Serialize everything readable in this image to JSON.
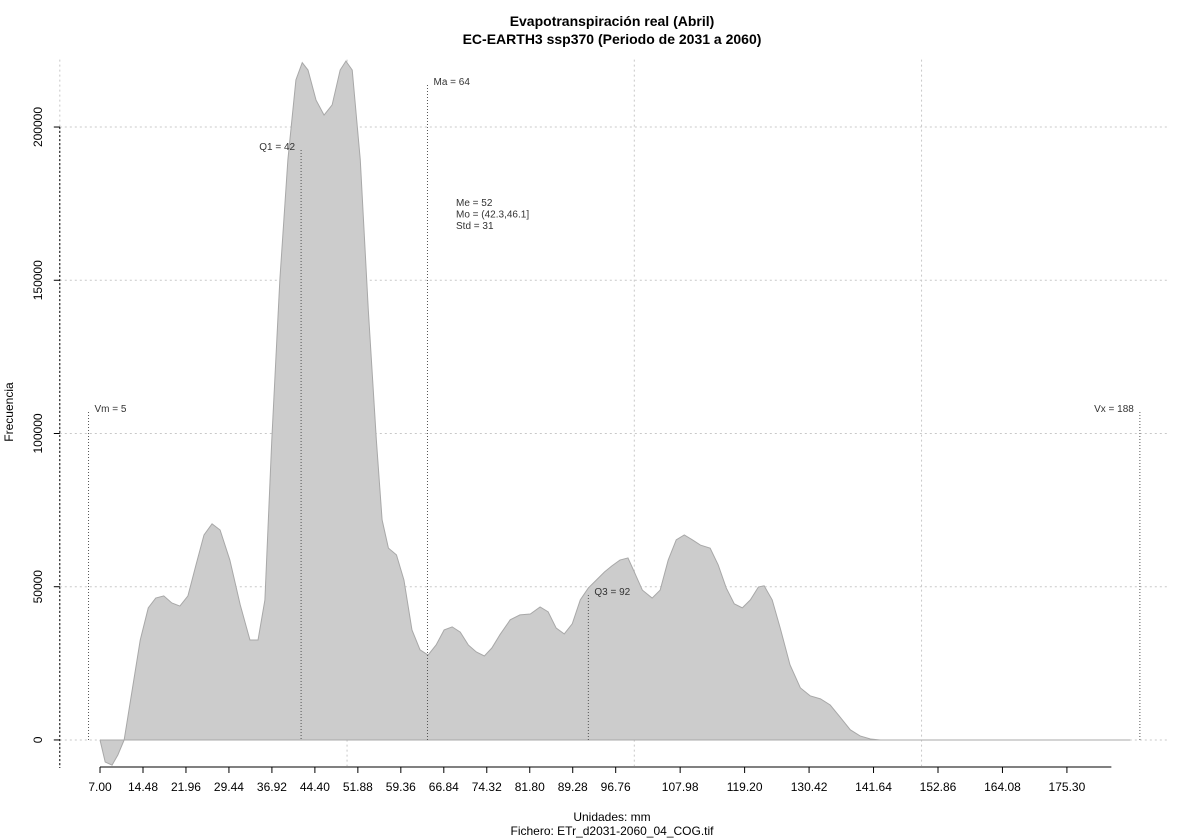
{
  "chart_data": {
    "type": "area",
    "title": "Evapotranspiración real (Abril)",
    "subtitle": "EC-EARTH3 ssp370 (Periodo de 2031 a 2060)",
    "x_label": "Unidades: mm",
    "caption": "Fichero: ETr_d2031-2060_04_COG.tif",
    "y_label": "Frecuencia",
    "color": "#cccccc",
    "x": [
      7.0,
      7.9,
      9.1,
      10.1,
      11.2,
      12.6,
      14.0,
      15.4,
      16.7,
      18.1,
      19.5,
      20.9,
      22.3,
      23.7,
      25.1,
      26.5,
      27.9,
      29.6,
      31.4,
      33.1,
      34.5,
      35.7,
      36.9,
      38.3,
      39.7,
      41.1,
      42.2,
      43.2,
      44.6,
      46.0,
      47.4,
      48.8,
      49.8,
      50.9,
      52.3,
      53.7,
      55.1,
      56.1,
      57.2,
      58.6,
      59.9,
      61.3,
      62.7,
      64.1,
      65.5,
      66.9,
      68.3,
      69.7,
      71.1,
      72.5,
      73.9,
      75.2,
      76.6,
      78.4,
      80.1,
      81.9,
      83.6,
      85.0,
      86.4,
      87.8,
      89.2,
      90.6,
      92.0,
      93.4,
      94.8,
      96.1,
      97.5,
      98.9,
      100.0,
      101.4,
      103.1,
      104.5,
      105.9,
      107.3,
      108.7,
      110.1,
      111.5,
      113.2,
      114.6,
      116.0,
      117.4,
      118.8,
      120.2,
      121.6,
      122.6,
      124.0,
      125.4,
      127.1,
      128.9,
      130.6,
      132.4,
      134.1,
      135.8,
      137.6,
      139.3,
      141.1,
      142.8,
      149.8,
      186.3
    ],
    "values": [
      0,
      -7200,
      -8200,
      -4900,
      0,
      16300,
      32600,
      43100,
      46300,
      47000,
      44700,
      43700,
      47000,
      57100,
      66900,
      70500,
      68500,
      58700,
      44100,
      32600,
      32600,
      45700,
      97900,
      150100,
      189300,
      215400,
      221000,
      218600,
      208800,
      203900,
      207200,
      218600,
      221500,
      218600,
      189300,
      140300,
      97900,
      71800,
      62600,
      60400,
      52200,
      35900,
      29400,
      27700,
      31000,
      35900,
      36900,
      35200,
      31000,
      28700,
      27400,
      30000,
      34300,
      39200,
      40800,
      41100,
      43400,
      41800,
      36500,
      34600,
      37900,
      45700,
      49600,
      52200,
      54800,
      56800,
      58700,
      59400,
      54800,
      48900,
      46300,
      48900,
      58700,
      65300,
      66900,
      65300,
      63600,
      62600,
      57100,
      49600,
      44400,
      43100,
      45700,
      49900,
      50300,
      45700,
      36500,
      24500,
      17000,
      14400,
      13400,
      11400,
      7500,
      3300,
      1300,
      300,
      0,
      0,
      0
    ],
    "xlim": [
      0,
      193
    ],
    "ylim": [
      -8500,
      222000
    ],
    "xticks": [
      {
        "value": 7,
        "label": "7.00"
      },
      14.48,
      21.96,
      29.44,
      36.92,
      {
        "value": 44.4,
        "label": "44.40"
      },
      51.88,
      59.36,
      66.84,
      74.32,
      {
        "value": 81.8,
        "label": "81.80"
      },
      89.28,
      96.76,
      107.98,
      {
        "value": 119.2,
        "label": "119.20"
      },
      130.42,
      141.64,
      152.86,
      164.08,
      {
        "value": 175.3,
        "label": "175.30"
      }
    ],
    "yticks": [
      0,
      50000,
      100000,
      150000,
      200000
    ],
    "xgrid": [
      0,
      50,
      100,
      150
    ],
    "grid": true,
    "annotations": [
      {
        "label": "Vm = 5",
        "x": 5,
        "y": 107000
      },
      {
        "label": "Q1 = 42",
        "x": 42,
        "y": 192500
      },
      {
        "label": "Ma = 64",
        "x": 64,
        "y": 213700
      },
      {
        "label": "Q3 = 92",
        "x": 92,
        "y": 47300
      },
      {
        "label": "Vx = 188",
        "x": 188,
        "y": 107000
      }
    ],
    "stats": [
      "Me = 52",
      "Mo = (42.3,46.1]",
      "Std = 31"
    ]
  }
}
